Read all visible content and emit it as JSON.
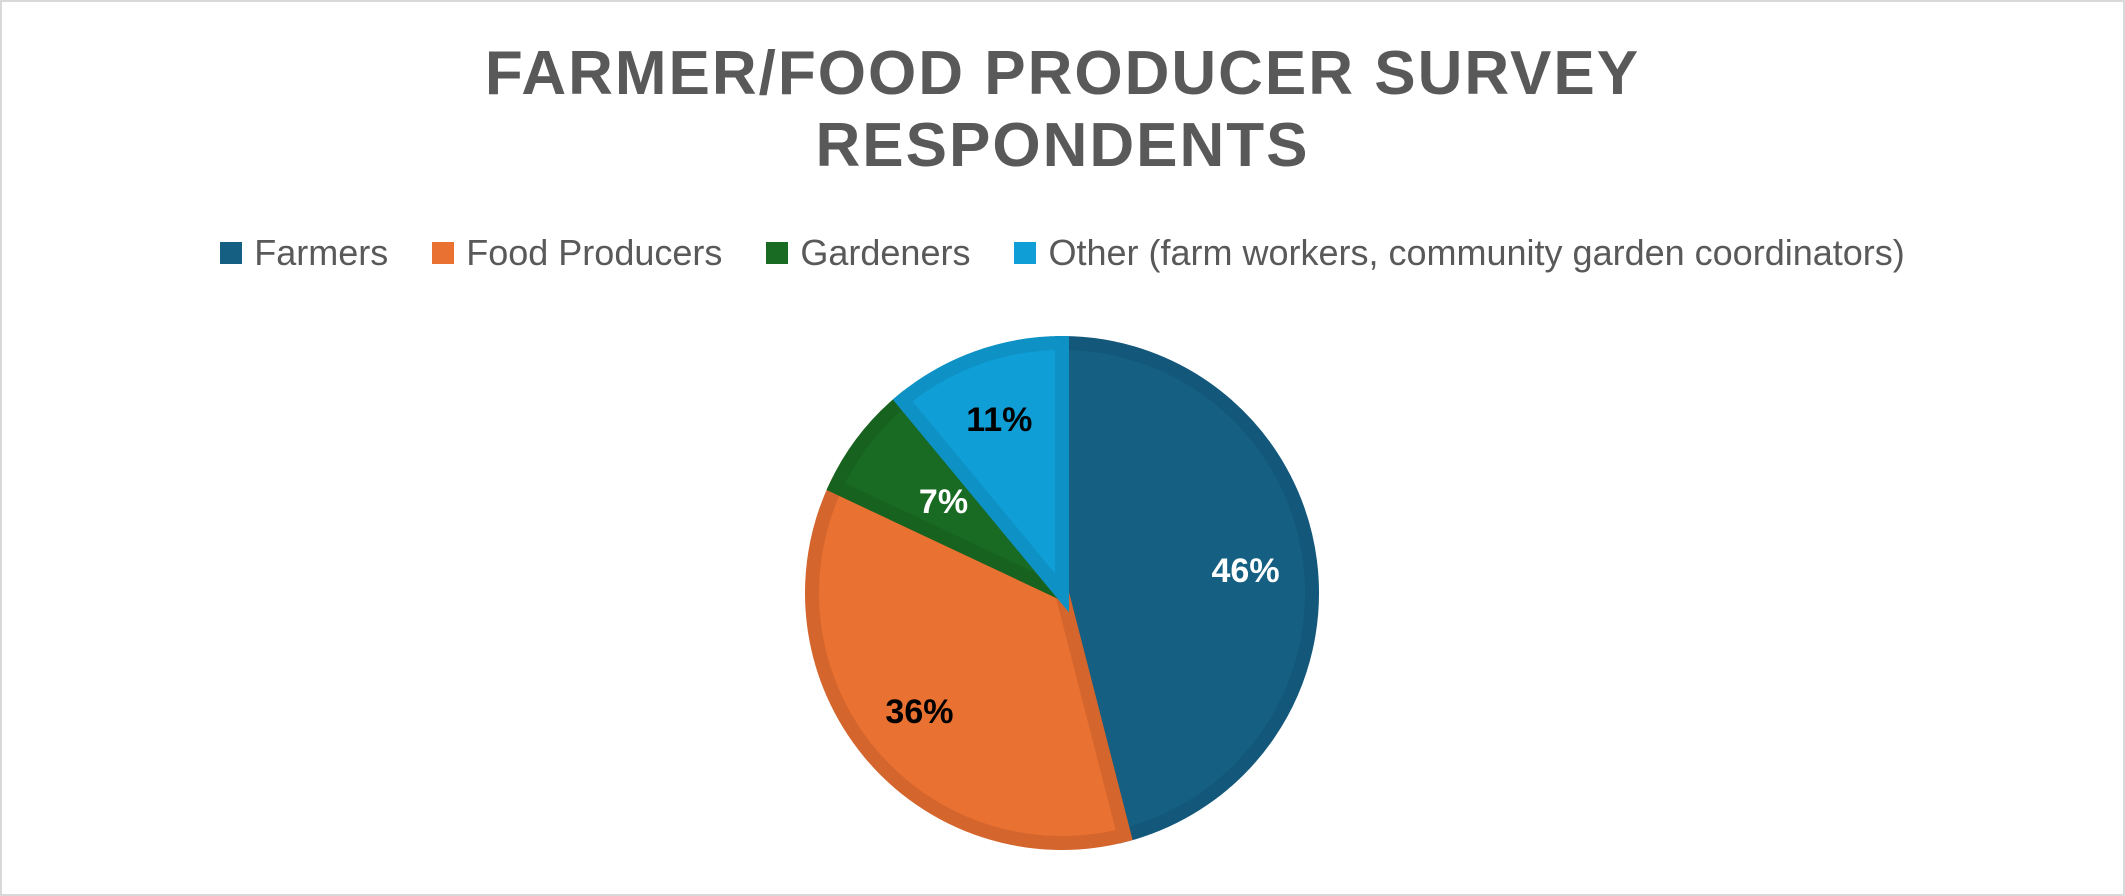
{
  "chart_data": {
    "type": "pie",
    "title_lines": [
      "FARMER/FOOD PRODUCER SURVEY",
      "RESPONDENTS"
    ],
    "legend_placement": "top",
    "categories": [
      "Farmers",
      "Food Producers",
      "Gardeners",
      "Other (farm workers, community garden coordinators)"
    ],
    "values": [
      46,
      36,
      7,
      11
    ],
    "labels": [
      "46%",
      "36%",
      "7%",
      "11%"
    ],
    "colors": [
      "#156082",
      "#E97132",
      "#196B24",
      "#0F9ED5"
    ],
    "border_colors": [
      "#13577A",
      "#D4652C",
      "#17621F",
      "#0E92C6"
    ],
    "label_colors": [
      "#FFFFFF",
      "#000000",
      "#FFFFFF",
      "#000000"
    ]
  }
}
